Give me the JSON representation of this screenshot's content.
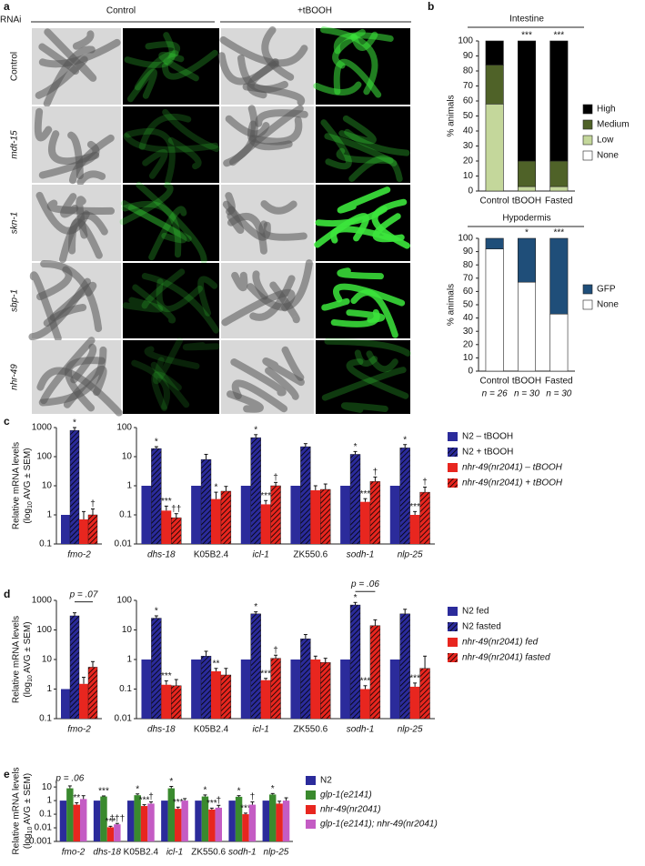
{
  "panel_a": {
    "label": "a",
    "rnai": "RNAi",
    "columns": [
      "Control",
      "+tBOOH"
    ],
    "rows": [
      "Control",
      "mdt-15",
      "skn-1",
      "sbp-1",
      "nhr-49"
    ]
  },
  "chart_data": [
    {
      "type": "stacked_bar",
      "panel": "b",
      "title": "Intestine",
      "y_label": "% animals",
      "categories": [
        "Control",
        "tBOOH",
        "Fasted"
      ],
      "significance": [
        null,
        "***",
        "***"
      ],
      "series": [
        {
          "name": "High",
          "color": "#000000",
          "values": [
            16,
            80,
            80
          ]
        },
        {
          "name": "Medium",
          "color": "#4f6228",
          "values": [
            26,
            17,
            17
          ]
        },
        {
          "name": "Low",
          "color": "#c4d79b",
          "values": [
            58,
            3,
            3
          ]
        },
        {
          "name": "None",
          "color": "#ffffff",
          "values": [
            0,
            0,
            0
          ]
        }
      ],
      "ylim": [
        0,
        100
      ],
      "yticks": [
        0,
        10,
        20,
        30,
        40,
        50,
        60,
        70,
        80,
        90,
        100
      ]
    },
    {
      "type": "stacked_bar",
      "title": "Hypodermis",
      "y_label": "% animals",
      "categories": [
        "Control",
        "tBOOH",
        "Fasted"
      ],
      "n_labels": [
        "n = 26",
        "n = 30",
        "n = 30"
      ],
      "significance": [
        null,
        "*",
        "***"
      ],
      "series": [
        {
          "name": "GFP",
          "color": "#1f4e79",
          "values": [
            8,
            33,
            57
          ]
        },
        {
          "name": "None",
          "color": "#ffffff",
          "values": [
            92,
            67,
            43
          ]
        }
      ],
      "ylim": [
        0,
        100
      ],
      "yticks": [
        0,
        10,
        20,
        30,
        40,
        50,
        60,
        70,
        80,
        90,
        100
      ]
    },
    {
      "type": "log_bar",
      "panel": "c",
      "y_label": "Relative mRNA levels",
      "y_label_2": [
        "(log",
        "10",
        " AVG ± SEM)"
      ],
      "categories": [
        "fmo-2"
      ],
      "ylim": [
        0.1,
        1000
      ],
      "yticks": [
        0.1,
        1,
        10,
        100,
        1000
      ],
      "series": [
        {
          "color": "#2b2b9b",
          "values": [
            1
          ]
        },
        {
          "color": "#2b2b9b",
          "hatch": true,
          "values": [
            800
          ],
          "errors": [
            200
          ],
          "significance": [
            "*"
          ]
        },
        {
          "color": "#e8261f",
          "values": [
            0.7
          ],
          "errors": [
            0.6
          ]
        },
        {
          "color": "#e8261f",
          "hatch": true,
          "values": [
            1.0
          ],
          "errors": [
            0.6
          ],
          "significance": [
            "†"
          ]
        }
      ]
    },
    {
      "type": "log_bar",
      "categories": [
        "dhs-18",
        "K05B2.4",
        "icl-1",
        "ZK550.6",
        "sodh-1",
        "nlp-25"
      ],
      "ylim": [
        0.01,
        100
      ],
      "yticks": [
        0.01,
        0.1,
        1,
        10,
        100
      ],
      "series": [
        {
          "name": "N2 – tBOOH",
          "color": "#2b2b9b",
          "values": [
            1,
            1,
            1,
            1,
            1,
            1
          ]
        },
        {
          "name": "N2 + tBOOH",
          "color": "#2b2b9b",
          "hatch": true,
          "values": [
            19,
            8,
            45,
            22,
            12,
            20
          ],
          "errors": [
            3,
            4,
            12,
            6,
            3,
            6
          ],
          "significance": [
            "*",
            null,
            "*",
            null,
            "*",
            "*"
          ]
        },
        {
          "name": "nhr-49(nr2041) – tBOOH",
          "color": "#e8261f",
          "values": [
            0.14,
            0.35,
            0.23,
            0.7,
            0.28,
            0.1
          ],
          "errors": [
            0.06,
            0.25,
            0.08,
            0.3,
            0.08,
            0.03
          ],
          "significance": [
            "***",
            "*",
            "***",
            null,
            "***",
            "***"
          ]
        },
        {
          "name": "nhr-49(nr2041) + tBOOH",
          "color": "#e8261f",
          "hatch": true,
          "values": [
            0.08,
            0.65,
            1.0,
            0.75,
            1.4,
            0.6
          ],
          "errors": [
            0.03,
            0.3,
            0.3,
            0.4,
            0.6,
            0.3
          ],
          "significance": [
            "††",
            null,
            "†",
            null,
            "†",
            "†"
          ]
        }
      ]
    },
    {
      "type": "log_bar",
      "panel": "d",
      "y_label": "Relative mRNA levels",
      "y_label_2": [
        "(log",
        "10",
        " AVG ± SEM)"
      ],
      "note": "p = .07",
      "categories": [
        "fmo-2"
      ],
      "ylim": [
        0.1,
        1000
      ],
      "yticks": [
        0.1,
        1,
        10,
        100,
        1000
      ],
      "series": [
        {
          "color": "#2b2b9b",
          "values": [
            1
          ]
        },
        {
          "color": "#2b2b9b",
          "hatch": true,
          "values": [
            300
          ],
          "errors": [
            80
          ]
        },
        {
          "color": "#e8261f",
          "values": [
            1.5
          ],
          "errors": [
            1.0
          ]
        },
        {
          "color": "#e8261f",
          "hatch": true,
          "values": [
            5.5
          ],
          "errors": [
            3
          ]
        }
      ]
    },
    {
      "type": "log_bar",
      "note": "p = .06",
      "categories": [
        "dhs-18",
        "K05B2.4",
        "icl-1",
        "ZK550.6",
        "sodh-1",
        "nlp-25"
      ],
      "ylim": [
        0.01,
        100
      ],
      "yticks": [
        0.01,
        0.1,
        1,
        10,
        100
      ],
      "series": [
        {
          "name": "N2 fed",
          "color": "#2b2b9b",
          "values": [
            1,
            1,
            1,
            1,
            1,
            1
          ]
        },
        {
          "name": "N2 fasted",
          "color": "#2b2b9b",
          "hatch": true,
          "values": [
            25,
            1.3,
            35,
            5,
            70,
            35
          ],
          "errors": [
            5,
            0.6,
            6,
            2,
            15,
            15
          ],
          "significance": [
            "*",
            null,
            "*",
            null,
            "*",
            null
          ]
        },
        {
          "name": "nhr-49(nr2041) fed",
          "color": "#e8261f",
          "values": [
            0.14,
            0.4,
            0.2,
            1.0,
            0.1,
            0.12
          ],
          "errors": [
            0.05,
            0.1,
            0.03,
            0.3,
            0.03,
            0.04
          ],
          "significance": [
            "***",
            "**",
            "***",
            null,
            "***",
            "***"
          ]
        },
        {
          "name": "nhr-49(nr2041) fasted",
          "color": "#e8261f",
          "hatch": true,
          "values": [
            0.13,
            0.3,
            1.1,
            0.8,
            14,
            0.5
          ],
          "errors": [
            0.08,
            0.2,
            0.3,
            0.3,
            8,
            0.8
          ],
          "significance": [
            null,
            null,
            "†",
            null,
            null,
            null
          ]
        }
      ]
    },
    {
      "type": "log_bar",
      "panel": "e",
      "y_label": "Relative mRNA levels",
      "y_label_2": [
        "(log",
        "10",
        " AVG ± SEM)"
      ],
      "note": "p = .06",
      "categories": [
        "fmo-2",
        "dhs-18",
        "K05B2.4",
        "icl-1",
        "ZK550.6",
        "sodh-1",
        "nlp-25"
      ],
      "ylim": [
        0.001,
        30
      ],
      "yticks": [
        0.001,
        0.01,
        0.1,
        1,
        10
      ],
      "series": [
        {
          "name": "N2",
          "color": "#2b2b9b",
          "values": [
            1,
            1,
            1,
            1,
            1,
            1,
            1
          ]
        },
        {
          "name": "glp-1(e2141)",
          "color": "#3a8a2e",
          "values": [
            8,
            2,
            2.5,
            8,
            2,
            1.9,
            2.8
          ],
          "errors": [
            4,
            0.2,
            0.6,
            3,
            0.6,
            0.4,
            0.5
          ],
          "significance": [
            null,
            "***",
            "*",
            "*",
            "*",
            "*",
            "*"
          ]
        },
        {
          "name": "nhr-49(nr2041)",
          "color": "#e8261f",
          "values": [
            0.5,
            0.011,
            0.4,
            0.25,
            0.22,
            0.1,
            0.6
          ],
          "errors": [
            0.2,
            0.002,
            0.1,
            0.08,
            0.06,
            0.02,
            0.3
          ],
          "significance": [
            "**",
            "***",
            "***",
            "***",
            "***",
            "***",
            null
          ]
        },
        {
          "name": "glp-1(e2141); nhr-49(nr2041)",
          "color": "#c45cc4",
          "values": [
            1.3,
            0.018,
            0.6,
            1.0,
            0.3,
            0.5,
            1.0
          ],
          "errors": [
            1,
            0.003,
            0.2,
            0.4,
            0.15,
            0.3,
            0.6
          ],
          "significance": [
            null,
            "†††",
            "†",
            null,
            "†",
            "†",
            null
          ]
        }
      ]
    }
  ]
}
